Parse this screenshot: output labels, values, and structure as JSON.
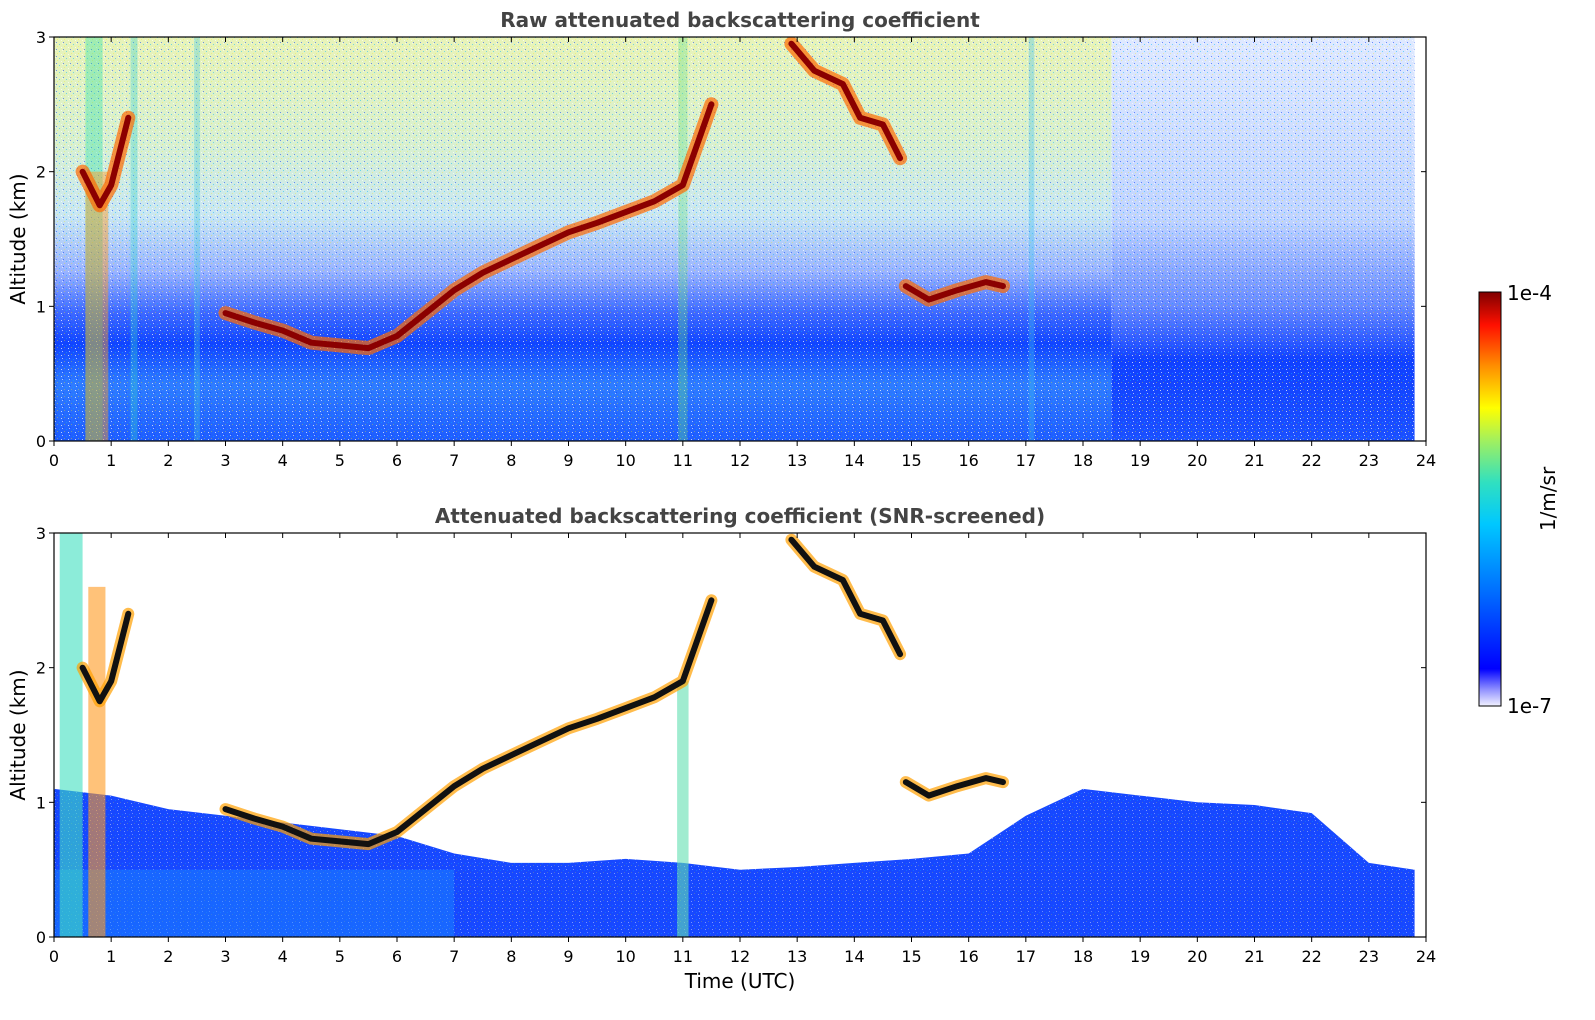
{
  "chart_data": [
    {
      "type": "heatmap",
      "title": "Raw attenuated backscattering coefficient",
      "xlabel": "",
      "ylabel": "Altitude (km)",
      "xlim": [
        0,
        24
      ],
      "ylim": [
        0,
        3
      ],
      "xticks": [
        0,
        1,
        2,
        3,
        4,
        5,
        6,
        7,
        8,
        9,
        10,
        11,
        12,
        13,
        14,
        15,
        16,
        17,
        18,
        19,
        20,
        21,
        22,
        23,
        24
      ],
      "yticks": [
        0,
        1,
        2,
        3
      ],
      "screened": false,
      "data_end_time": 23.8,
      "layers": [
        {
          "name": "boundary-layer-top",
          "points": [
            [
              3.0,
              0.95
            ],
            [
              3.5,
              0.88
            ],
            [
              4.0,
              0.82
            ],
            [
              4.5,
              0.73
            ],
            [
              5.0,
              0.71
            ],
            [
              5.5,
              0.69
            ],
            [
              6.0,
              0.78
            ],
            [
              6.5,
              0.95
            ],
            [
              7.0,
              1.12
            ],
            [
              7.5,
              1.25
            ],
            [
              8.0,
              1.35
            ],
            [
              8.5,
              1.45
            ],
            [
              9.0,
              1.55
            ],
            [
              9.5,
              1.62
            ],
            [
              10.0,
              1.7
            ],
            [
              10.5,
              1.78
            ],
            [
              11.0,
              1.9
            ],
            [
              11.5,
              2.5
            ]
          ]
        },
        {
          "name": "upper-cloud-13-14",
          "points": [
            [
              12.9,
              2.95
            ],
            [
              13.3,
              2.75
            ],
            [
              13.8,
              2.65
            ],
            [
              14.1,
              2.4
            ],
            [
              14.5,
              2.35
            ],
            [
              14.8,
              2.1
            ]
          ]
        },
        {
          "name": "cloud-15-16",
          "points": [
            [
              14.9,
              1.15
            ],
            [
              15.3,
              1.05
            ],
            [
              15.8,
              1.12
            ],
            [
              16.3,
              1.18
            ],
            [
              16.6,
              1.15
            ]
          ]
        },
        {
          "name": "early-cloud-0-1",
          "points": [
            [
              0.5,
              2.0
            ],
            [
              0.8,
              1.75
            ],
            [
              1.0,
              1.9
            ],
            [
              1.3,
              2.4
            ]
          ]
        }
      ]
    },
    {
      "type": "heatmap",
      "title": "Attenuated backscattering coefficient (SNR-screened)",
      "xlabel": "Time (UTC)",
      "ylabel": "Altitude (km)",
      "xlim": [
        0,
        24
      ],
      "ylim": [
        0,
        3
      ],
      "xticks": [
        0,
        1,
        2,
        3,
        4,
        5,
        6,
        7,
        8,
        9,
        10,
        11,
        12,
        13,
        14,
        15,
        16,
        17,
        18,
        19,
        20,
        21,
        22,
        23,
        24
      ],
      "yticks": [
        0,
        1,
        2,
        3
      ],
      "screened": true,
      "data_end_time": 23.8,
      "valid_top_km": [
        [
          0,
          1.1
        ],
        [
          1,
          1.05
        ],
        [
          2,
          0.95
        ],
        [
          3,
          0.9
        ],
        [
          4,
          0.85
        ],
        [
          5,
          0.8
        ],
        [
          6,
          0.75
        ],
        [
          7,
          0.62
        ],
        [
          8,
          0.55
        ],
        [
          9,
          0.55
        ],
        [
          10,
          0.58
        ],
        [
          11,
          0.55
        ],
        [
          12,
          0.5
        ],
        [
          13,
          0.52
        ],
        [
          14,
          0.55
        ],
        [
          15,
          0.58
        ],
        [
          16,
          0.62
        ],
        [
          17,
          0.9
        ],
        [
          18,
          1.1
        ],
        [
          19,
          1.05
        ],
        [
          20,
          1.0
        ],
        [
          21,
          0.98
        ],
        [
          22,
          0.92
        ],
        [
          23,
          0.55
        ],
        [
          23.8,
          0.5
        ]
      ]
    }
  ],
  "colorbar": {
    "label": "1/m/sr",
    "max_label": "1e-4",
    "min_label": "1e-7",
    "scale": "log",
    "range": [
      1e-07,
      0.0001
    ],
    "colormap": [
      "#eeeeff",
      "#0000ff",
      "#00a0ff",
      "#40e0d0",
      "#ffff00",
      "#ff8000",
      "#ff0000",
      "#800000"
    ]
  }
}
